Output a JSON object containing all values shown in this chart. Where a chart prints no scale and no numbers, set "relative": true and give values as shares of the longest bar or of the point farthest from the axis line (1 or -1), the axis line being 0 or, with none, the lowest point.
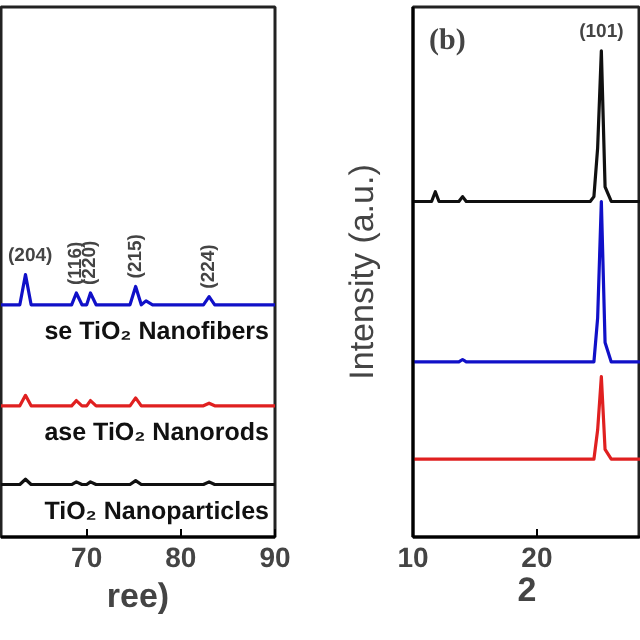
{
  "chart_data": [
    {
      "type": "line",
      "relative": true,
      "xlabel": "ree)",
      "xlim": [
        60.9,
        90
      ],
      "xticks": [
        70,
        80,
        90
      ],
      "grid": false,
      "tick_labels": "x",
      "x": [
        60.9,
        62.9,
        63.5,
        64.1,
        68.4,
        68.9,
        69.5,
        70.0,
        70.4,
        71.0,
        74.6,
        75.2,
        75.8,
        76.3,
        77.0,
        82.4,
        83.0,
        83.6,
        90
      ],
      "series": [
        {
          "name": "se TiO₂ Nanofibers",
          "color": "#1010c8",
          "values": [
            0.885,
            0.885,
            1.0,
            0.885,
            0.885,
            0.93,
            0.885,
            0.885,
            0.93,
            0.885,
            0.885,
            0.955,
            0.885,
            0.9,
            0.885,
            0.885,
            0.916,
            0.885,
            0.885
          ]
        },
        {
          "name": "ase TiO₂ Nanorods",
          "color": "#e02020",
          "values": [
            0.5,
            0.5,
            0.54,
            0.5,
            0.5,
            0.52,
            0.5,
            0.5,
            0.52,
            0.5,
            0.5,
            0.53,
            0.5,
            0.5,
            0.5,
            0.5,
            0.51,
            0.5,
            0.5
          ]
        },
        {
          "name": "TiO₂ Nanoparticles",
          "color": "#101010",
          "values": [
            0.2,
            0.2,
            0.22,
            0.2,
            0.2,
            0.21,
            0.2,
            0.2,
            0.21,
            0.2,
            0.2,
            0.215,
            0.2,
            0.2,
            0.2,
            0.2,
            0.21,
            0.2,
            0.2
          ]
        }
      ],
      "annotations": [
        {
          "text": "(204)",
          "x": 64.0,
          "y": 1.0
        },
        {
          "text": "(116)",
          "x": 68.9,
          "y": 0.93
        },
        {
          "text": "(220)",
          "x": 70.4,
          "y": 0.93
        },
        {
          "text": "(215)",
          "x": 75.2,
          "y": 0.955
        },
        {
          "text": "(224)",
          "x": 83.0,
          "y": 0.916
        }
      ]
    },
    {
      "type": "line",
      "relative": true,
      "xlabel": "2",
      "ylabel": "Intensity (a.u.)",
      "xlim": [
        10,
        28.4
      ],
      "xticks": [
        10,
        20
      ],
      "grid": false,
      "tick_labels": "x",
      "x": [
        10,
        11.5,
        11.8,
        12.1,
        13.7,
        14.0,
        14.3,
        24.3,
        24.6,
        24.9,
        25.2,
        25.5,
        26.0,
        28.4
      ],
      "series": [
        {
          "color": "#101010",
          "values": [
            0.69,
            0.69,
            0.71,
            0.69,
            0.69,
            0.7,
            0.69,
            0.69,
            0.7,
            0.8,
            1.0,
            0.72,
            0.69,
            0.69
          ]
        },
        {
          "color": "#1010c8",
          "values": [
            0.36,
            0.36,
            0.36,
            0.36,
            0.36,
            0.365,
            0.36,
            0.36,
            0.36,
            0.45,
            0.69,
            0.4,
            0.36,
            0.36
          ]
        },
        {
          "color": "#e02020",
          "values": [
            0.16,
            0.16,
            0.16,
            0.16,
            0.16,
            0.16,
            0.16,
            0.16,
            0.16,
            0.22,
            0.33,
            0.18,
            0.16,
            0.16
          ]
        }
      ],
      "annotations": [
        "(b)",
        {
          "text": "(101)",
          "x": 25.2,
          "y": 1.0
        }
      ]
    }
  ]
}
